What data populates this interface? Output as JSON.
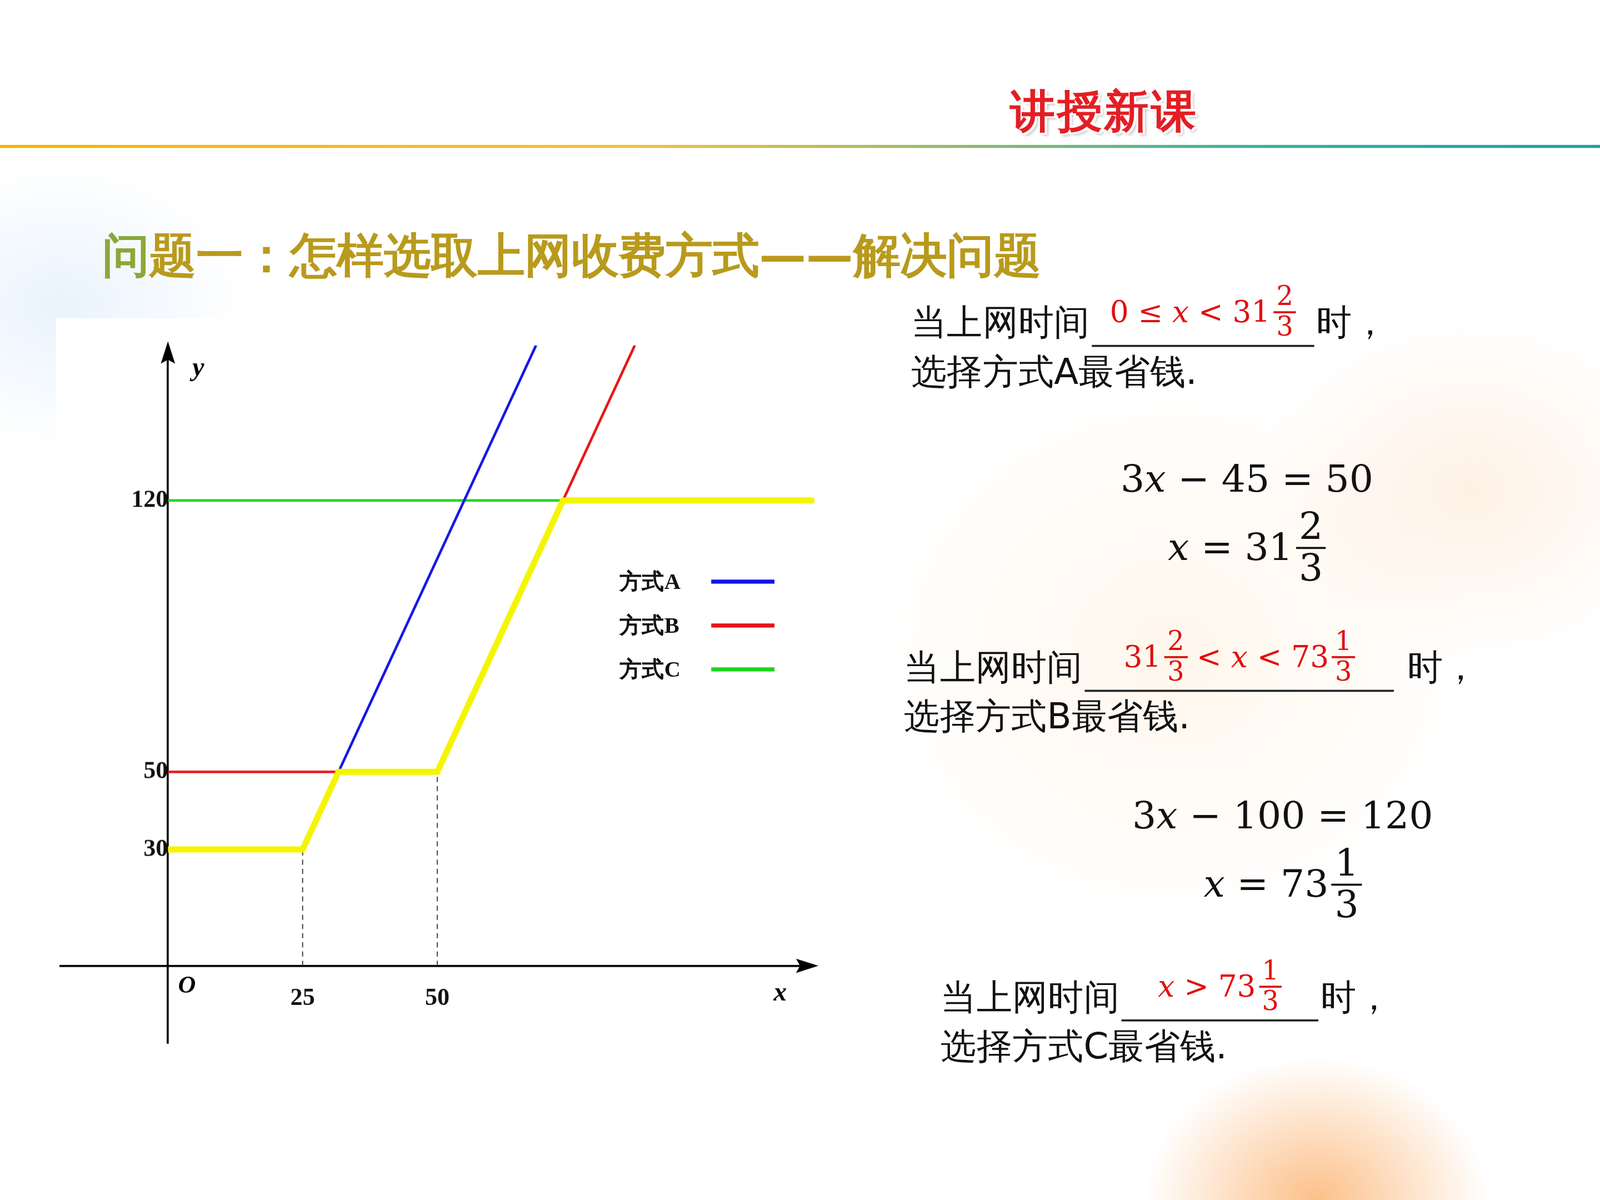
{
  "header": "讲授新课",
  "title": "问题一：怎样选取上网收费方式——解决问题",
  "chart_data": {
    "type": "line",
    "xlabel": "x",
    "ylabel": "y",
    "origin_label": "O",
    "xlim": [
      -20,
      120
    ],
    "ylim": [
      -20,
      160
    ],
    "xticks": [
      25,
      50
    ],
    "yticks": [
      30,
      50,
      120
    ],
    "grid": false,
    "legend": "right",
    "series": [
      {
        "name": "方式A",
        "color": "#1414e6",
        "x": [
          0,
          25,
          68.333
        ],
        "values": [
          30,
          30,
          160
        ]
      },
      {
        "name": "方式B",
        "color": "#e61414",
        "x": [
          0,
          50,
          86.667
        ],
        "values": [
          50,
          50,
          160
        ]
      },
      {
        "name": "方式C",
        "color": "#1ed21e",
        "x": [
          0,
          120
        ],
        "values": [
          120,
          120
        ]
      },
      {
        "color": "#f5f500",
        "x": [
          0,
          25,
          31.667,
          50,
          73.333,
          120
        ],
        "values": [
          30,
          30,
          50,
          50,
          120,
          120
        ]
      }
    ]
  },
  "steps": [
    {
      "kind": "question",
      "before": "当上网时间",
      "answer": [
        "0 ≤ x < 31",
        {
          "frac": [
            "2",
            "3"
          ]
        }
      ],
      "after": "时，",
      "conclusion": "选择方式A最省钱."
    },
    {
      "kind": "equation",
      "lines": [
        [
          "3x − 45 = 50"
        ],
        [
          "x = 31",
          {
            "frac": [
              "2",
              "3"
            ]
          }
        ]
      ]
    },
    {
      "kind": "question",
      "before": "当上网时间",
      "answer": [
        "31",
        {
          "frac": [
            "2",
            "3"
          ]
        },
        " < x < 73",
        {
          "frac": [
            "1",
            "3"
          ]
        }
      ],
      "after": " 时，",
      "conclusion": "选择方式B最省钱."
    },
    {
      "kind": "equation",
      "lines": [
        [
          "3x − 100 = 120"
        ],
        [
          "x = 73",
          {
            "frac": [
              "1",
              "3"
            ]
          }
        ]
      ]
    },
    {
      "kind": "question",
      "before": "当上网时间",
      "answer": [
        "x > 73",
        {
          "frac": [
            "1",
            "3"
          ]
        }
      ],
      "after": "时，",
      "conclusion": "选择方式C最省钱."
    }
  ]
}
